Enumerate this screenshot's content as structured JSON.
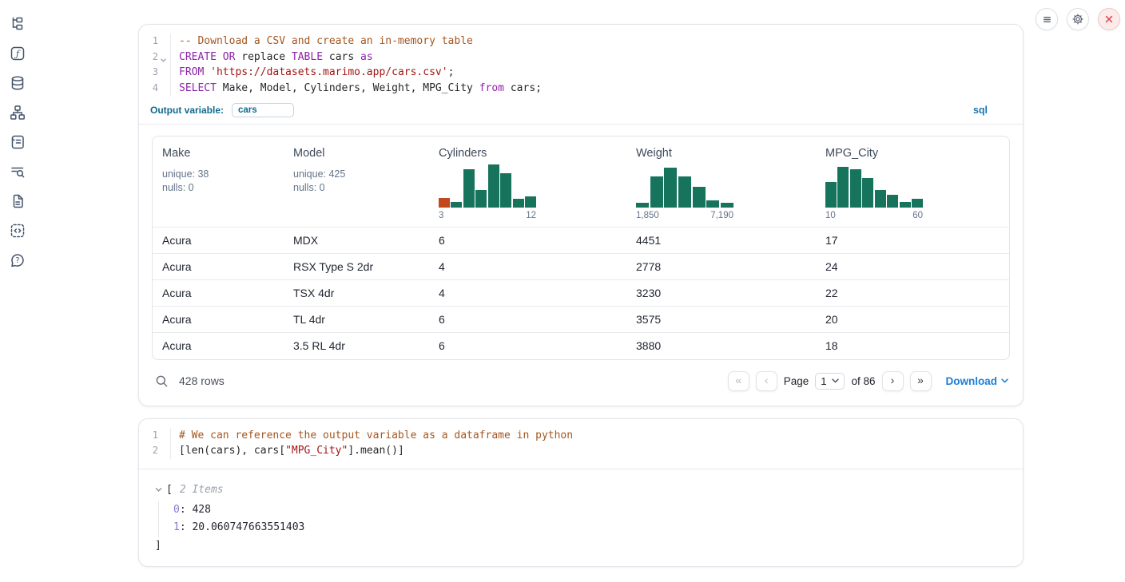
{
  "colors": {
    "histogram_teal": "#16735c",
    "histogram_orange": "#c2491d",
    "download_blue": "#1c7ed6",
    "sql_badge_blue": "#1a78b4",
    "output_variable_teal": "#11698e",
    "close_red": "#e5484d"
  },
  "sidebar": {
    "items": [
      {
        "icon": "file-tree-icon"
      },
      {
        "icon": "function-icon"
      },
      {
        "icon": "database-icon"
      },
      {
        "icon": "dependency-graph-icon"
      },
      {
        "icon": "scroll-icon"
      },
      {
        "icon": "list-search-icon"
      },
      {
        "icon": "document-icon"
      },
      {
        "icon": "code-snippets-icon"
      },
      {
        "icon": "help-icon"
      }
    ]
  },
  "top_actions": [
    {
      "icon": "menu-icon"
    },
    {
      "icon": "settings-gear-icon"
    },
    {
      "icon": "close-icon"
    }
  ],
  "sql_cell": {
    "lines": [
      {
        "n": "1",
        "tokens": [
          {
            "t": "c",
            "x": "-- Download a CSV and create an in-memory table"
          }
        ]
      },
      {
        "n": "2",
        "tokens": [
          {
            "t": "k",
            "x": "CREATE"
          },
          {
            "t": "p",
            "x": " "
          },
          {
            "t": "k",
            "x": "OR"
          },
          {
            "t": "p",
            "x": " replace "
          },
          {
            "t": "k",
            "x": "TABLE"
          },
          {
            "t": "p",
            "x": " cars "
          },
          {
            "t": "k",
            "x": "as"
          }
        ]
      },
      {
        "n": "3",
        "tokens": [
          {
            "t": "k",
            "x": "FROM"
          },
          {
            "t": "p",
            "x": " "
          },
          {
            "t": "s",
            "x": "'https://datasets.marimo.app/cars.csv'"
          },
          {
            "t": "p",
            "x": ";"
          }
        ]
      },
      {
        "n": "4",
        "tokens": [
          {
            "t": "k",
            "x": "SELECT"
          },
          {
            "t": "p",
            "x": " Make, Model, Cylinders, Weight, MPG_City "
          },
          {
            "t": "k",
            "x": "from"
          },
          {
            "t": "p",
            "x": " cars;"
          }
        ]
      }
    ],
    "output_variable_label": "Output variable:",
    "output_variable_value": "cars",
    "language_badge": "sql"
  },
  "table": {
    "columns": [
      {
        "label": "Make",
        "stats": {
          "unique": "unique: 38",
          "nulls": "nulls: 0"
        }
      },
      {
        "label": "Model",
        "stats": {
          "unique": "unique: 425",
          "nulls": "nulls: 0"
        }
      },
      {
        "label": "Cylinders",
        "hist": {
          "min_label": "3",
          "max_label": "12",
          "bars": [
            {
              "h": 0.22,
              "c": "#c2491d"
            },
            {
              "h": 0.13
            },
            {
              "h": 0.88
            },
            {
              "h": 0.4
            },
            {
              "h": 1.0
            },
            {
              "h": 0.8
            },
            {
              "h": 0.2
            },
            {
              "h": 0.26
            }
          ]
        }
      },
      {
        "label": "Weight",
        "hist": {
          "min_label": "1,850",
          "max_label": "7,190",
          "bars": [
            {
              "h": 0.12
            },
            {
              "h": 0.72
            },
            {
              "h": 0.93
            },
            {
              "h": 0.72
            },
            {
              "h": 0.48
            },
            {
              "h": 0.17
            },
            {
              "h": 0.12
            }
          ]
        }
      },
      {
        "label": "MPG_City",
        "hist": {
          "min_label": "10",
          "max_label": "60",
          "bars": [
            {
              "h": 0.6
            },
            {
              "h": 0.95
            },
            {
              "h": 0.88
            },
            {
              "h": 0.68
            },
            {
              "h": 0.4
            },
            {
              "h": 0.3
            },
            {
              "h": 0.13
            },
            {
              "h": 0.2
            }
          ]
        }
      }
    ],
    "rows": [
      {
        "make": "Acura",
        "model": "MDX",
        "cylinders": "6",
        "weight": "4451",
        "mpg_city": "17"
      },
      {
        "make": "Acura",
        "model": "RSX Type S 2dr",
        "cylinders": "4",
        "weight": "2778",
        "mpg_city": "24"
      },
      {
        "make": "Acura",
        "model": "TSX 4dr",
        "cylinders": "4",
        "weight": "3230",
        "mpg_city": "22"
      },
      {
        "make": "Acura",
        "model": "TL 4dr",
        "cylinders": "6",
        "weight": "3575",
        "mpg_city": "20"
      },
      {
        "make": "Acura",
        "model": "3.5 RL 4dr",
        "cylinders": "6",
        "weight": "3880",
        "mpg_city": "18"
      }
    ],
    "footer": {
      "row_count": "428 rows",
      "page_label": "Page",
      "page_value": "1",
      "of_label": "of 86",
      "download_label": "Download"
    }
  },
  "python_cell": {
    "lines": [
      {
        "n": "1",
        "tokens": [
          {
            "t": "c",
            "x": "# We can reference the output variable as a dataframe in python"
          }
        ]
      },
      {
        "n": "2",
        "tokens": [
          {
            "t": "p",
            "x": "[len(cars), cars["
          },
          {
            "t": "s",
            "x": "\"MPG_City\""
          },
          {
            "t": "p",
            "x": "].mean()]"
          }
        ]
      }
    ],
    "output": {
      "open_bracket": "[",
      "items_label": "2 Items",
      "entries": [
        {
          "index": "0",
          "sep": ": ",
          "value": "428"
        },
        {
          "index": "1",
          "sep": ": ",
          "value": "20.060747663551403"
        }
      ],
      "close_bracket": "]"
    }
  }
}
